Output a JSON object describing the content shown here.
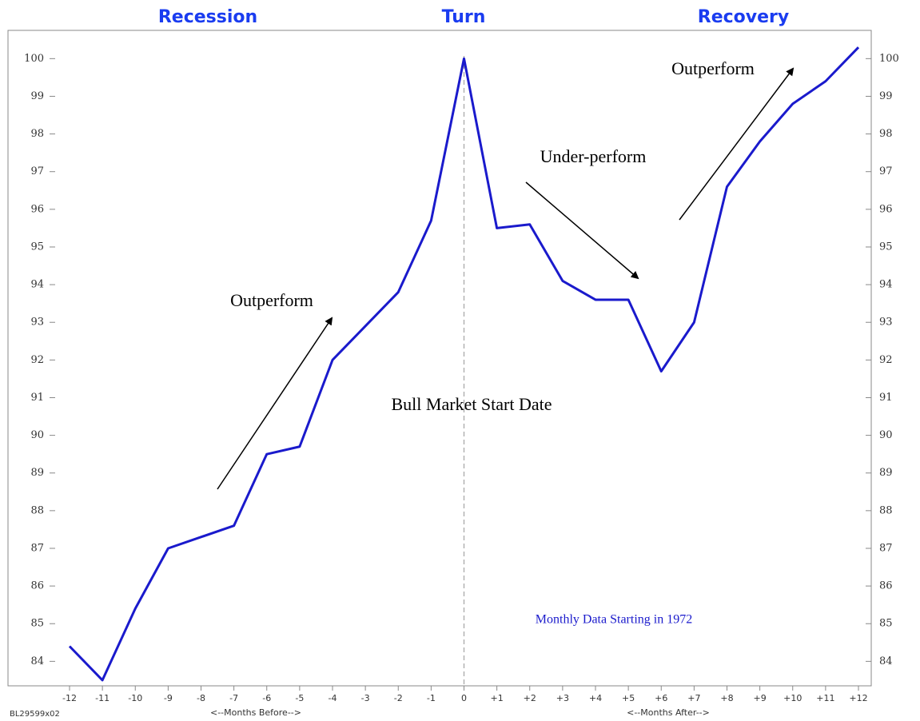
{
  "chart_data": {
    "type": "line",
    "section_titles": [
      "Recession",
      "Turn",
      "Recovery"
    ],
    "annotations": [
      "Outperform",
      "Under-perform",
      "Outperform",
      "Bull Market Start Date",
      "Monthly Data Starting in 1972"
    ],
    "x_axis_labels": [
      "<--Months Before-->",
      "<--Months After-->"
    ],
    "footnote": "BL29599x02",
    "categories": [
      "-12",
      "-11",
      "-10",
      "-9",
      "-8",
      "-7",
      "-6",
      "-5",
      "-4",
      "-3",
      "-2",
      "-1",
      "0",
      "+1",
      "+2",
      "+3",
      "+4",
      "+5",
      "+6",
      "+7",
      "+8",
      "+9",
      "+10",
      "+11",
      "+12"
    ],
    "values": [
      84.4,
      83.5,
      85.4,
      87.0,
      87.3,
      87.6,
      89.5,
      89.7,
      92.0,
      92.9,
      93.8,
      95.7,
      100.0,
      95.5,
      95.6,
      94.1,
      93.6,
      93.6,
      91.7,
      93.0,
      96.6,
      97.8,
      98.8,
      99.4,
      100.3
    ],
    "color": "#1a1acc",
    "ylim": [
      83.35,
      100.75
    ],
    "yticks": [
      84,
      85,
      86,
      87,
      88,
      89,
      90,
      91,
      92,
      93,
      94,
      95,
      96,
      97,
      98,
      99,
      100
    ],
    "grid": false
  }
}
